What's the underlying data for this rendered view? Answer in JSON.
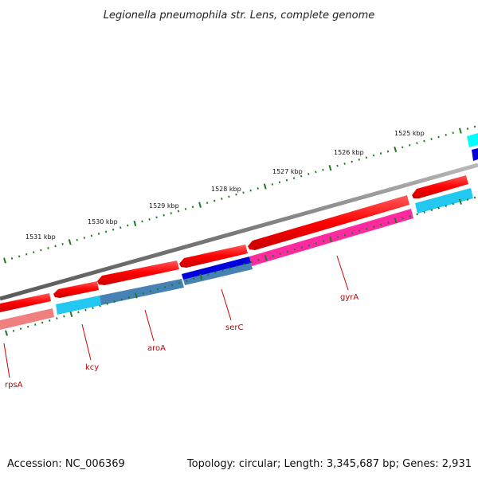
{
  "title": "Legionella pneumophila str. Lens, complete genome",
  "accession": "Accession: NC_006369",
  "summary": "Topology: circular; Length: 3,345,687 bp; Genes: 2,931",
  "kbp_labels": [
    "1531 kbp",
    "1530 kbp",
    "1529 kbp",
    "1528 kbp",
    "1527 kbp",
    "1526 kbp",
    "1525 kbp"
  ],
  "genes": [
    {
      "name": "rpsA",
      "color": "#ff0000"
    },
    {
      "name": "kcy",
      "color": "#ff0000"
    },
    {
      "name": "aroA",
      "color": "#ff0000"
    },
    {
      "name": "serC",
      "color": "#ff0000"
    },
    {
      "name": "gyrA",
      "color": "#ff0000"
    }
  ],
  "colors": {
    "backbone": "#808080",
    "cds": "#ff0000",
    "cog_cyan": "#22c8f0",
    "cog_steel": "#4682b4",
    "cog_blue": "#0000dd",
    "cog_pink": "#ff2aa0",
    "cog_salmon": "#f08080",
    "tick": "#1e7a1e",
    "label_line": "#d00000"
  }
}
